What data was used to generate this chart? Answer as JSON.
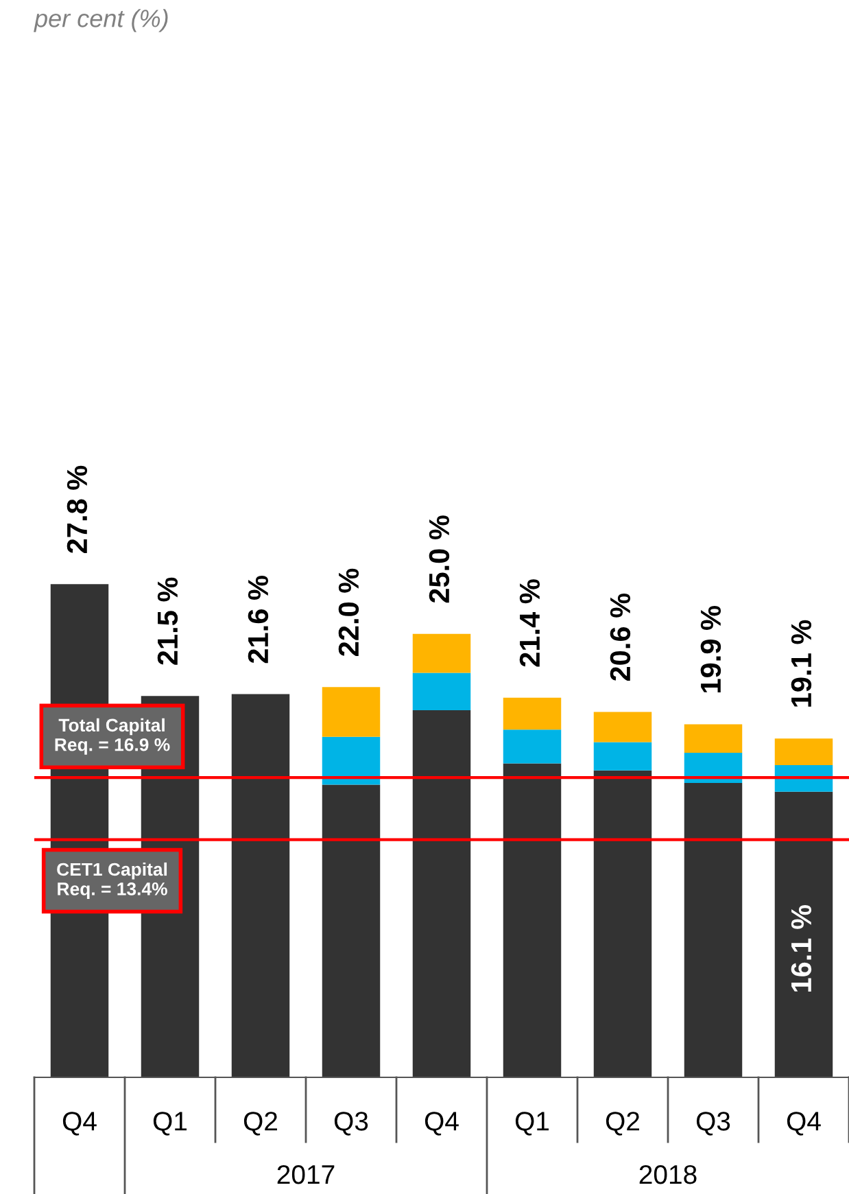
{
  "chart_data": {
    "type": "bar",
    "stacked": true,
    "subtitle": "per cent (%)",
    "categories": [
      "Q4",
      "Q1",
      "Q2",
      "Q3",
      "Q4",
      "Q1",
      "Q2",
      "Q3",
      "Q4"
    ],
    "series": [
      {
        "color": "#333333",
        "values": [
          27.8,
          21.5,
          21.6,
          16.5,
          20.7,
          17.7,
          17.3,
          16.6,
          16.1
        ],
        "value_labels": [
          null,
          null,
          null,
          null,
          null,
          null,
          null,
          null,
          "16.1 %"
        ]
      },
      {
        "color": "#00b4e6",
        "values": [
          null,
          null,
          null,
          2.7,
          2.1,
          1.9,
          1.6,
          1.7,
          1.5
        ]
      },
      {
        "color": "#ffb400",
        "values": [
          null,
          null,
          null,
          2.8,
          2.2,
          1.8,
          1.7,
          1.6,
          1.5
        ]
      }
    ],
    "totals": [
      "27.8 %",
      "21.5 %",
      "21.6 %",
      "22.0 %",
      "25.0 %",
      "21.4 %",
      "20.6 %",
      "19.9 %",
      "19.1 %"
    ],
    "ref_lines": [
      {
        "axis": "y",
        "value": 16.9,
        "label": "Total Capital\nReq. = 16.9 %",
        "color": "#ff0000"
      },
      {
        "axis": "y",
        "value": 13.4,
        "label": "CET1 Capital\nReq. = 13.4%",
        "color": "#ff0000"
      }
    ],
    "annotations": [
      "2017",
      "2018"
    ],
    "legend": false
  }
}
